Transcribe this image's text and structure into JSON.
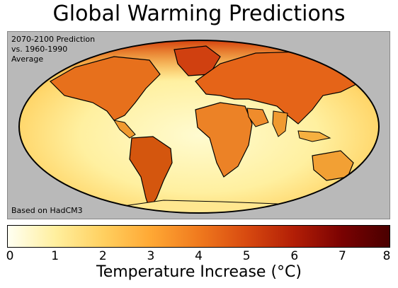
{
  "title": "Global Warming Predictions",
  "map": {
    "period_label": [
      "2070-2100 Prediction",
      "vs. 1960-1990",
      "Average"
    ],
    "source_label": "Based on HadCM3",
    "projection": "Mollweide",
    "background_color": "#b9b9b9"
  },
  "colorbar": {
    "label": "Temperature Increase (°C)",
    "min": 0,
    "max": 8,
    "ticks": [
      "0",
      "1",
      "2",
      "3",
      "4",
      "5",
      "6",
      "7",
      "8"
    ],
    "colors": [
      "#fffff2",
      "#ffef9e",
      "#ffd060",
      "#ffa834",
      "#f07a1e",
      "#d84a10",
      "#b21e06",
      "#7a0202",
      "#4a0000"
    ]
  }
}
